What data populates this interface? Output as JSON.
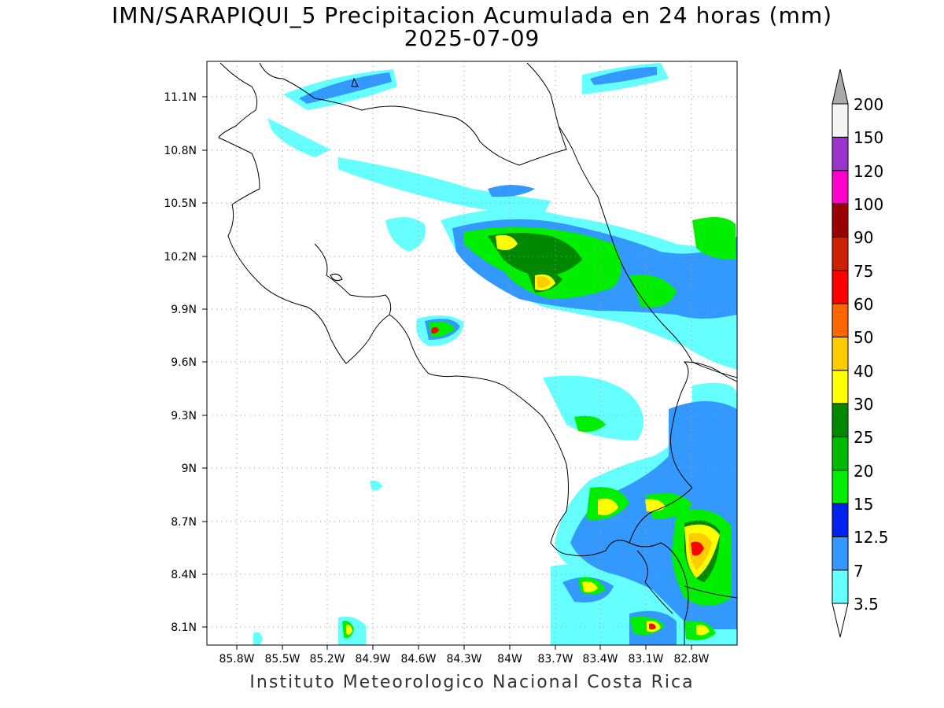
{
  "title": {
    "line1": "IMN/SARAPIQUI_5 Precipitacion Acumulada en 24 horas (mm)",
    "line2": "2025-07-09"
  },
  "footer": "Instituto Meteorologico Nacional Costa Rica",
  "map": {
    "lon_range": [
      -86.0,
      -82.5
    ],
    "lat_range": [
      8.0,
      11.3
    ],
    "x_ticks": [
      "85.8W",
      "85.5W",
      "85.2W",
      "84.9W",
      "84.6W",
      "84.3W",
      "84W",
      "83.7W",
      "83.4W",
      "83.1W",
      "82.8W"
    ],
    "y_ticks": [
      "11.1N",
      "10.8N",
      "10.5N",
      "10.2N",
      "9.9N",
      "9.6N",
      "9.3N",
      "9N",
      "8.7N",
      "8.4N",
      "8.1N"
    ],
    "grid": "dotted"
  },
  "colorbar": {
    "labels": [
      "3.5",
      "7",
      "12.5",
      "15",
      "20",
      "25",
      "30",
      "40",
      "50",
      "60",
      "75",
      "90",
      "100",
      "120",
      "150",
      "200"
    ],
    "colors": [
      "#66ffff",
      "#3399ff",
      "#0022ee",
      "#00ee00",
      "#00bb00",
      "#008800",
      "#ffff00",
      "#ffcc00",
      "#ff6600",
      "#ff0000",
      "#cc2200",
      "#990000",
      "#ff00cc",
      "#9933cc",
      "#f5f5f5",
      "#aaaaaa"
    ]
  }
}
